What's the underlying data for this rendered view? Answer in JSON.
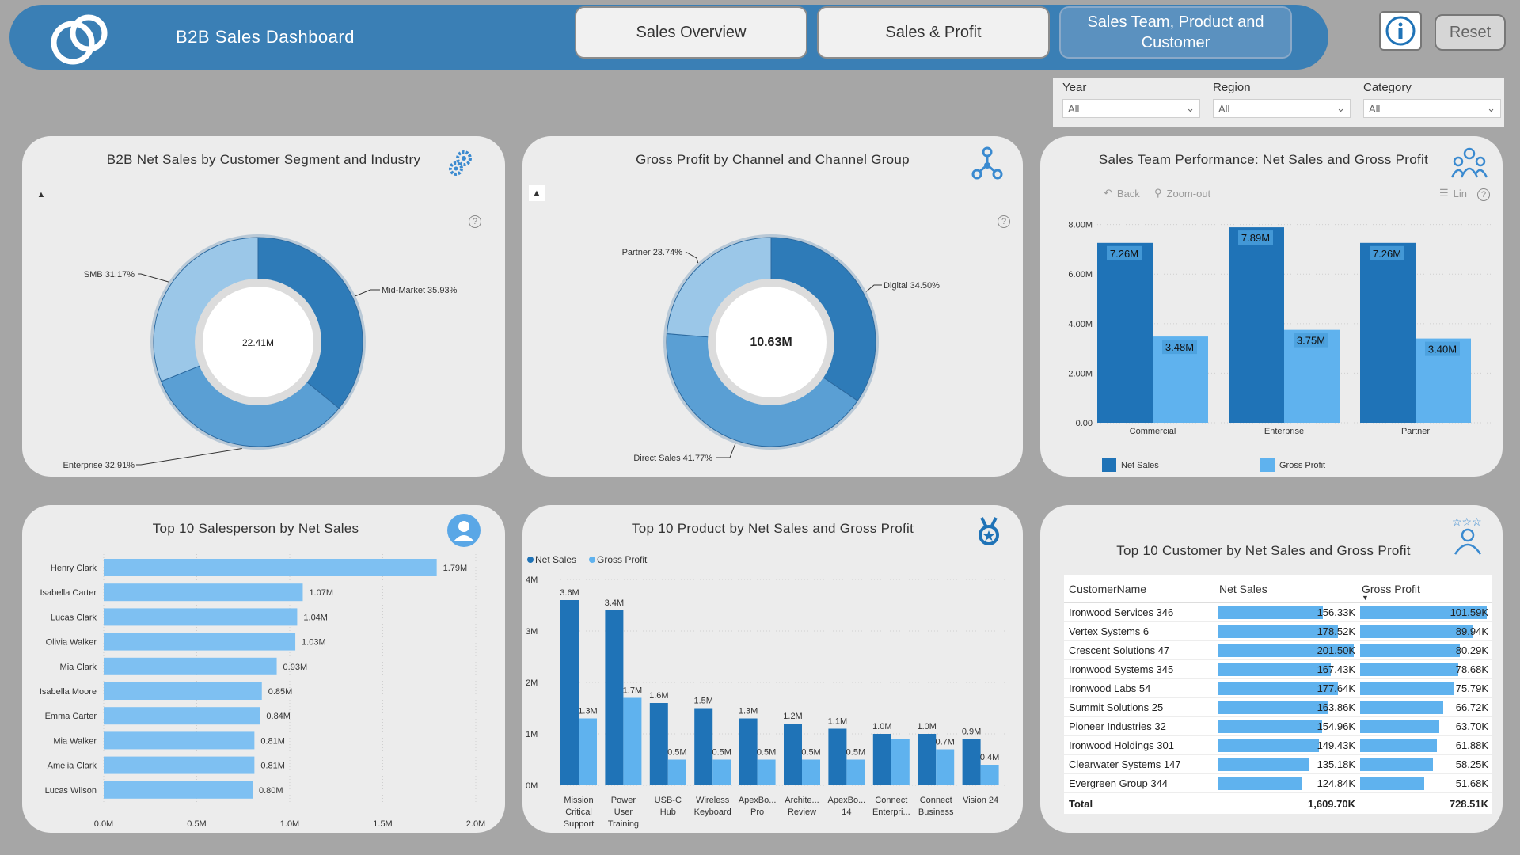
{
  "header": {
    "title": "B2B Sales Dashboard",
    "nav": [
      {
        "label": "Sales Overview"
      },
      {
        "label": "Sales & Profit"
      },
      {
        "label": "Sales Team, Product and Customer"
      }
    ],
    "reset_label": "Reset"
  },
  "filters": [
    {
      "label": "Year",
      "value": "All"
    },
    {
      "label": "Region",
      "value": "All"
    },
    {
      "label": "Category",
      "value": "All"
    }
  ],
  "colors": {
    "dark_blue": "#1f73b7",
    "mid_blue": "#5a9fd4",
    "light_blue": "#9bc7e8",
    "bright_blue": "#5fb2ee",
    "bar_light": "#7ec0f2"
  },
  "donut1": {
    "title": "B2B Net Sales by Customer Segment and Industry",
    "center": "22.41M",
    "icon": "gears-icon",
    "slices": [
      {
        "label": "Mid-Market 35.93%",
        "pct": 35.93
      },
      {
        "label": "Enterprise 32.91%",
        "pct": 32.91
      },
      {
        "label": "SMB 31.17%",
        "pct": 31.17
      }
    ]
  },
  "donut2": {
    "title": "Gross Profit by Channel and Channel Group",
    "center": "10.63M",
    "icon": "network-icon",
    "slices": [
      {
        "label": "Digital 34.50%",
        "pct": 34.5
      },
      {
        "label": "Direct Sales 41.77%",
        "pct": 41.77
      },
      {
        "label": "Partner 23.74%",
        "pct": 23.74
      }
    ]
  },
  "team_chart": {
    "title": "Sales Team Performance: Net Sales and Gross Profit",
    "back_label": "Back",
    "zoom_label": "Zoom-out",
    "lin_label": "Lin",
    "y_ticks": [
      "0.00",
      "2.00M",
      "4.00M",
      "6.00M",
      "8.00M"
    ],
    "legend": [
      "Net Sales",
      "Gross Profit"
    ]
  },
  "salesperson_chart": {
    "title": "Top 10 Salesperson by Net Sales",
    "x_ticks": [
      "0.0M",
      "0.5M",
      "1.0M",
      "1.5M",
      "2.0M"
    ]
  },
  "product_chart": {
    "title": "Top 10 Product by Net Sales and Gross Profit",
    "legend": [
      "Net Sales",
      "Gross Profit"
    ],
    "y_ticks": [
      "0M",
      "1M",
      "2M",
      "3M",
      "4M"
    ]
  },
  "customer_table": {
    "title": "Top 10 Customer by Net Sales and Gross Profit",
    "headers": [
      "CustomerName",
      "Net Sales",
      "Gross Profit"
    ],
    "rows": [
      {
        "name": "Ironwood Services 346",
        "ns": "156.33K",
        "ns_v": 156.33,
        "gp": "101.59K",
        "gp_v": 101.59
      },
      {
        "name": "Vertex Systems 6",
        "ns": "178.52K",
        "ns_v": 178.52,
        "gp": "89.94K",
        "gp_v": 89.94
      },
      {
        "name": "Crescent Solutions 47",
        "ns": "201.50K",
        "ns_v": 201.5,
        "gp": "80.29K",
        "gp_v": 80.29
      },
      {
        "name": "Ironwood Systems 345",
        "ns": "167.43K",
        "ns_v": 167.43,
        "gp": "78.68K",
        "gp_v": 78.68
      },
      {
        "name": "Ironwood Labs 54",
        "ns": "177.64K",
        "ns_v": 177.64,
        "gp": "75.79K",
        "gp_v": 75.79
      },
      {
        "name": "Summit Solutions 25",
        "ns": "163.86K",
        "ns_v": 163.86,
        "gp": "66.72K",
        "gp_v": 66.72
      },
      {
        "name": "Pioneer Industries 32",
        "ns": "154.96K",
        "ns_v": 154.96,
        "gp": "63.70K",
        "gp_v": 63.7
      },
      {
        "name": "Ironwood Holdings 301",
        "ns": "149.43K",
        "ns_v": 149.43,
        "gp": "61.88K",
        "gp_v": 61.88
      },
      {
        "name": "Clearwater Systems 147",
        "ns": "135.18K",
        "ns_v": 135.18,
        "gp": "58.25K",
        "gp_v": 58.25
      },
      {
        "name": "Evergreen Group 344",
        "ns": "124.84K",
        "ns_v": 124.84,
        "gp": "51.68K",
        "gp_v": 51.68
      }
    ],
    "total_label": "Total",
    "total_ns": "1,609.70K",
    "total_gp": "728.51K"
  },
  "chart_data": [
    {
      "type": "bar",
      "title": "Sales Team Performance: Net Sales and Gross Profit",
      "categories": [
        "Commercial",
        "Enterprise",
        "Partner"
      ],
      "series": [
        {
          "name": "Net Sales",
          "values": [
            7.26,
            7.89,
            7.26
          ],
          "labels": [
            "7.26M",
            "7.89M",
            "7.26M"
          ]
        },
        {
          "name": "Gross Profit",
          "values": [
            3.48,
            3.75,
            3.4
          ],
          "labels": [
            "3.48M",
            "3.75M",
            "3.40M"
          ]
        }
      ],
      "ylim": [
        0,
        8.5
      ]
    },
    {
      "type": "bar",
      "title": "Top 10 Salesperson by Net Sales",
      "categories": [
        "Henry Clark",
        "Isabella Carter",
        "Lucas Clark",
        "Olivia Walker",
        "Mia Clark",
        "Isabella Moore",
        "Emma Carter",
        "Mia Walker",
        "Amelia Clark",
        "Lucas Wilson"
      ],
      "values": [
        1.79,
        1.07,
        1.04,
        1.03,
        0.93,
        0.85,
        0.84,
        0.81,
        0.81,
        0.8
      ],
      "labels": [
        "1.79M",
        "1.07M",
        "1.04M",
        "1.03M",
        "0.93M",
        "0.85M",
        "0.84M",
        "0.81M",
        "0.81M",
        "0.80M"
      ],
      "xlim": [
        0,
        2.0
      ]
    },
    {
      "type": "bar",
      "title": "Top 10 Product by Net Sales and Gross Profit",
      "categories": [
        [
          "Mission",
          "Critical",
          "Support"
        ],
        [
          "Power",
          "User",
          "Training"
        ],
        [
          "USB-C",
          "Hub"
        ],
        [
          "Wireless",
          "Keyboard"
        ],
        [
          "ApexBo...",
          "Pro"
        ],
        [
          "Archite...",
          "Review"
        ],
        [
          "ApexBo...",
          "14"
        ],
        [
          "Connect",
          "Enterpri..."
        ],
        [
          "Connect",
          "Business"
        ],
        [
          "Vision 24"
        ]
      ],
      "series": [
        {
          "name": "Net Sales",
          "values": [
            3.6,
            3.4,
            1.6,
            1.5,
            1.3,
            1.2,
            1.1,
            1.0,
            1.0,
            0.9
          ],
          "labels": [
            "3.6M",
            "3.4M",
            "1.6M",
            "1.5M",
            "1.3M",
            "1.2M",
            "1.1M",
            "1.0M",
            "1.0M",
            "0.9M"
          ]
        },
        {
          "name": "Gross Profit",
          "values": [
            1.3,
            1.7,
            0.5,
            0.5,
            0.5,
            0.5,
            0.5,
            0.9,
            0.7,
            0.4
          ],
          "labels": [
            "1.3M",
            "1.7M",
            "0.5M",
            "0.5M",
            "0.5M",
            "0.5M",
            "0.5M",
            "",
            "0.7M",
            "0.4M"
          ]
        }
      ],
      "ylim": [
        0,
        4
      ]
    }
  ]
}
